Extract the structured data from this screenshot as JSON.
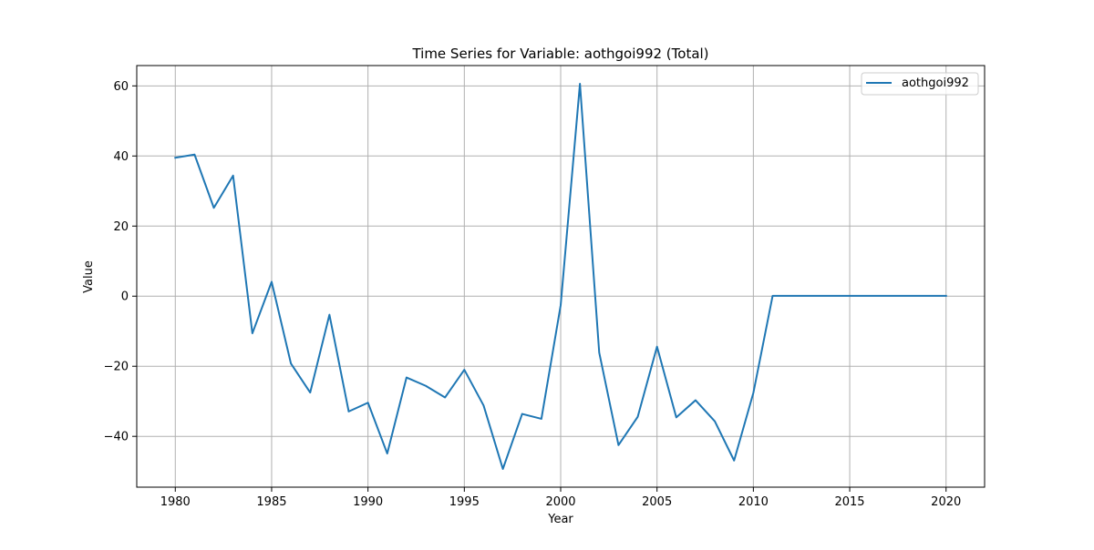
{
  "chart_data": {
    "type": "line",
    "title": "Time Series for Variable: aothgoi992 (Total)",
    "xlabel": "Year",
    "ylabel": "Value",
    "xlim": [
      1978.0,
      2022.0
    ],
    "ylim": [
      -54.5,
      65.8
    ],
    "xticks": [
      1980,
      1985,
      1990,
      1995,
      2000,
      2005,
      2010,
      2015,
      2020
    ],
    "yticks": [
      -40,
      -20,
      0,
      20,
      40,
      60
    ],
    "grid": true,
    "legend_position": "top-right",
    "series": [
      {
        "name": "aothgoi992",
        "color": "#1f77b4",
        "x": [
          1980,
          1981,
          1982,
          1983,
          1984,
          1985,
          1986,
          1987,
          1988,
          1989,
          1990,
          1991,
          1992,
          1993,
          1994,
          1995,
          1996,
          1997,
          1998,
          1999,
          2000,
          2001,
          2002,
          2003,
          2004,
          2005,
          2006,
          2007,
          2008,
          2009,
          2010,
          2011,
          2012,
          2013,
          2014,
          2015,
          2016,
          2017,
          2018,
          2019,
          2020
        ],
        "y": [
          39.5,
          40.4,
          25.2,
          34.4,
          -10.6,
          4.1,
          -19.2,
          -27.5,
          -5.3,
          -32.9,
          -30.4,
          -44.9,
          -23.2,
          -25.6,
          -28.9,
          -21.0,
          -31.2,
          -49.3,
          -33.6,
          -35.0,
          -2.6,
          60.6,
          -16.1,
          -42.5,
          -34.4,
          -14.4,
          -34.6,
          -29.7,
          -35.7,
          -46.9,
          -27.6,
          0.1,
          0.1,
          0.1,
          0.1,
          0.1,
          0.1,
          0.1,
          0.1,
          0.1,
          0.1
        ]
      }
    ]
  }
}
